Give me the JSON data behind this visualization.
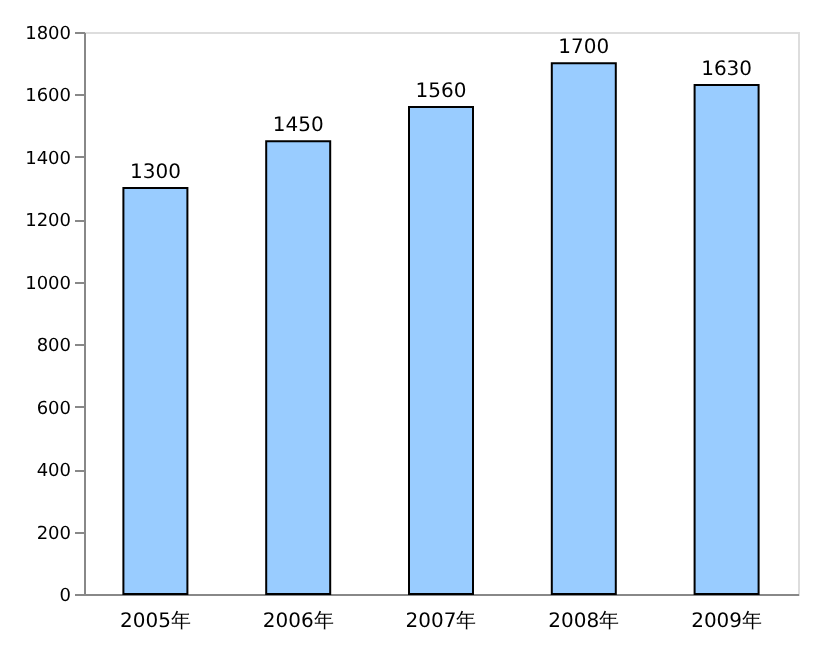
{
  "chart_data": {
    "type": "bar",
    "categories": [
      "2005年",
      "2006年",
      "2007年",
      "2008年",
      "2009年"
    ],
    "values": [
      1300,
      1450,
      1560,
      1700,
      1630
    ],
    "color": "#99ccff",
    "ylim": [
      0,
      1800
    ],
    "yticks": [
      0,
      200,
      400,
      600,
      800,
      1000,
      1200,
      1400,
      1600,
      1800
    ],
    "grid": false,
    "data_labels": true
  }
}
